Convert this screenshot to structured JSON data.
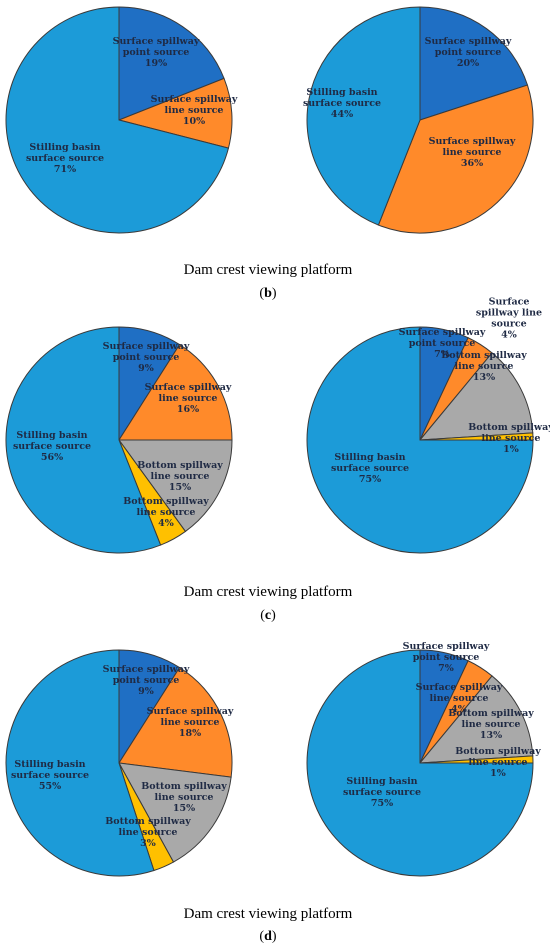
{
  "colors": {
    "point": "#1f6fc4",
    "surface_line": "#ff8a2a",
    "bottom_line": "#a9a9a9",
    "bottom_point": "#ffc000",
    "basin": "#1c9bd8"
  },
  "chart_data": [
    {
      "type": "pie",
      "panel": "b",
      "side": "left",
      "slices": [
        {
          "label_lines": [
            "Surface spillway",
            "point source",
            "19%"
          ],
          "value": 19,
          "color_key": "point"
        },
        {
          "label_lines": [
            "Surface spillway",
            "line source",
            "10%"
          ],
          "value": 10,
          "color_key": "surface_line"
        },
        {
          "label_lines": [
            "Stilling basin",
            "surface source",
            "71%"
          ],
          "value": 71,
          "color_key": "basin"
        }
      ]
    },
    {
      "type": "pie",
      "panel": "b",
      "side": "right",
      "slices": [
        {
          "label_lines": [
            "Surface spillway",
            "point source",
            "20%"
          ],
          "value": 20,
          "color_key": "point"
        },
        {
          "label_lines": [
            "Surface spillway",
            "line source",
            "36%"
          ],
          "value": 36,
          "color_key": "surface_line"
        },
        {
          "label_lines": [
            "Stilling basin",
            "surface source",
            "44%"
          ],
          "value": 44,
          "color_key": "basin"
        }
      ]
    },
    {
      "type": "pie",
      "panel": "c",
      "side": "left",
      "slices": [
        {
          "label_lines": [
            "Surface spillway",
            "point source",
            "9%"
          ],
          "value": 9,
          "color_key": "point"
        },
        {
          "label_lines": [
            "Surface spillway",
            "line source",
            "16%"
          ],
          "value": 16,
          "color_key": "surface_line"
        },
        {
          "label_lines": [
            "Bottom spillway",
            "line source",
            "15%"
          ],
          "value": 15,
          "color_key": "bottom_line"
        },
        {
          "label_lines": [
            "Bottom spillway",
            "line source",
            "4%"
          ],
          "value": 4,
          "color_key": "bottom_point"
        },
        {
          "label_lines": [
            "Stilling  basin",
            "surface source",
            "56%"
          ],
          "value": 56,
          "color_key": "basin"
        }
      ]
    },
    {
      "type": "pie",
      "panel": "c",
      "side": "right",
      "slices": [
        {
          "label_lines": [
            "Surface spillway",
            "point source",
            "7%"
          ],
          "value": 7,
          "color_key": "point"
        },
        {
          "label_lines": [
            "Surface",
            "spillway line",
            "source",
            "4%"
          ],
          "value": 4,
          "color_key": "surface_line"
        },
        {
          "label_lines": [
            "Bottom spillway",
            "line source",
            "13%"
          ],
          "value": 13,
          "color_key": "bottom_line"
        },
        {
          "label_lines": [
            "Bottom spillway",
            "line source",
            "1%"
          ],
          "value": 1,
          "color_key": "bottom_point"
        },
        {
          "label_lines": [
            "Stilling basin",
            "surface source",
            "75%"
          ],
          "value": 75,
          "color_key": "basin"
        }
      ]
    },
    {
      "type": "pie",
      "panel": "d",
      "side": "left",
      "slices": [
        {
          "label_lines": [
            "Surface spillway",
            "point source",
            "9%"
          ],
          "value": 9,
          "color_key": "point"
        },
        {
          "label_lines": [
            "Surface spillway",
            "line source",
            "18%"
          ],
          "value": 18,
          "color_key": "surface_line"
        },
        {
          "label_lines": [
            "Bottom spillway",
            "line source",
            "15%"
          ],
          "value": 15,
          "color_key": "bottom_line"
        },
        {
          "label_lines": [
            "Bottom spillway",
            "line source",
            "3%"
          ],
          "value": 3,
          "color_key": "bottom_point"
        },
        {
          "label_lines": [
            "Stilling  basin",
            "surface source",
            "55%"
          ],
          "value": 55,
          "color_key": "basin"
        }
      ]
    },
    {
      "type": "pie",
      "panel": "d",
      "side": "right",
      "slices": [
        {
          "label_lines": [
            "Surface spillway",
            "point source",
            "7%"
          ],
          "value": 7,
          "color_key": "point"
        },
        {
          "label_lines": [
            "Surface spillway",
            "line source",
            "4%"
          ],
          "value": 4,
          "color_key": "surface_line"
        },
        {
          "label_lines": [
            "Bottom spillway",
            "line source",
            "13%"
          ],
          "value": 13,
          "color_key": "bottom_line"
        },
        {
          "label_lines": [
            "Bottom spillway",
            "line source",
            "1%"
          ],
          "value": 1,
          "color_key": "bottom_point"
        },
        {
          "label_lines": [
            "Stilling basin",
            "surface source",
            "75%"
          ],
          "value": 75,
          "color_key": "basin"
        }
      ]
    }
  ],
  "panels": [
    {
      "caption": "Dam crest viewing platform",
      "tag_open": "(",
      "tag_letter": "b",
      "tag_close": ")"
    },
    {
      "caption": "Dam crest viewing platform",
      "tag_open": "(",
      "tag_letter": "c",
      "tag_close": ")"
    },
    {
      "caption": "Dam crest viewing platform",
      "tag_open": "(",
      "tag_letter": "d",
      "tag_close": ")"
    }
  ]
}
